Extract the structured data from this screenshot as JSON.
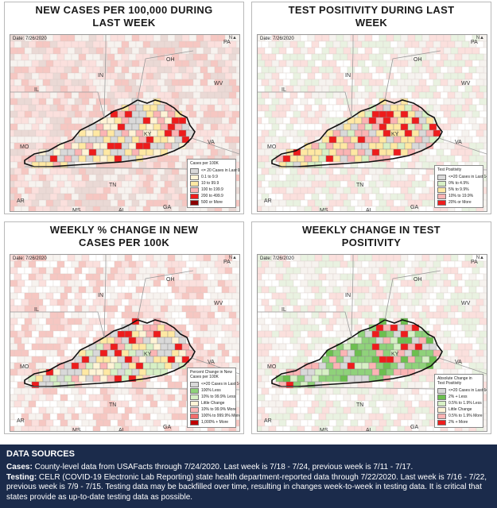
{
  "panels": [
    {
      "title_l1": "NEW CASES PER 100,000 DURING",
      "title_l2": "LAST WEEK",
      "date": "Date: 7/26/2020",
      "legend": {
        "title_l1": "Cases per 100K",
        "title_l2": "",
        "items": [
          {
            "label": "<= 20 Cases in Last 14 Days",
            "color": "#d9d9d9"
          },
          {
            "label": "0.1 to 9.9",
            "color": "#fff4d6"
          },
          {
            "label": "10 to 99.9",
            "color": "#ffe8a3"
          },
          {
            "label": "100 to 199.9",
            "color": "#fbb4b4"
          },
          {
            "label": "200 to 499.9",
            "color": "#ee1c1c"
          },
          {
            "label": "500 or More",
            "color": "#8b0000"
          }
        ]
      }
    },
    {
      "title_l1": "TEST POSITIVITY DURING LAST",
      "title_l2": "WEEK",
      "date": "Date: 7/26/2020",
      "legend": {
        "title_l1": "Test Positivity",
        "title_l2": "",
        "items": [
          {
            "label": "<=20 Cases in Last 14 Days",
            "color": "#d9d9d9"
          },
          {
            "label": "0% to 4.9%",
            "color": "#d7f0c5"
          },
          {
            "label": "5% to 9.9%",
            "color": "#ffe8a3"
          },
          {
            "label": "10% to 19.9%",
            "color": "#fbb4b4"
          },
          {
            "label": "20% or More",
            "color": "#ee1c1c"
          }
        ]
      }
    },
    {
      "title_l1": "WEEKLY % CHANGE IN NEW",
      "title_l2": "CASES PER 100K",
      "date": "Date: 7/26/2020",
      "legend": {
        "title_l1": "Percent Change in New",
        "title_l2": "Cases per 100K",
        "items": [
          {
            "label": "<=20 Cases in Last 14 Days",
            "color": "#d9d9d9"
          },
          {
            "label": "100% Less",
            "color": "#8fd27a"
          },
          {
            "label": "10% to 99.9% Less",
            "color": "#d7f0c5"
          },
          {
            "label": "Little Change",
            "color": "#fff4d6"
          },
          {
            "label": "10% to 99.9% More",
            "color": "#fbb4b4"
          },
          {
            "label": "100% to 999.9% More",
            "color": "#f26d6d"
          },
          {
            "label": "1,000% + More",
            "color": "#c00000"
          }
        ]
      }
    },
    {
      "title_l1": "WEEKLY CHANGE IN TEST",
      "title_l2": "POSITIVITY",
      "date": "Date: 7/26/2020",
      "legend": {
        "title_l1": "Absolute Change in Test",
        "title_l2": "Positivity",
        "items": [
          {
            "label": "<=20 Cases in Last 14 Days",
            "color": "#d9d9d9"
          },
          {
            "label": "2% + Less",
            "color": "#6cbf4f"
          },
          {
            "label": "0.5% to 1.9% Less",
            "color": "#d7f0c5"
          },
          {
            "label": "Little Change",
            "color": "#fff4d6"
          },
          {
            "label": "0.5% to 1.9% More",
            "color": "#fbb4b4"
          },
          {
            "label": "2% + More",
            "color": "#ee1c1c"
          }
        ]
      }
    }
  ],
  "state_labels": {
    "oh": "OH",
    "in": "IN",
    "il": "IL",
    "wv": "WV",
    "ky": "KY",
    "va": "VA",
    "mo": "MO",
    "tn": "TN",
    "ar": "AR",
    "ms": "MS",
    "al": "AL",
    "ga": "GA",
    "nc": "NC",
    "pa": "PA"
  },
  "colors": {
    "footer_bg": "#1b2b4b",
    "ky_red": "#ee1c1c",
    "ky_yellow": "#ffe8a3",
    "ky_green": "#8fd27a",
    "ky_gray": "#d9d9d9"
  },
  "footer": {
    "title": "DATA SOURCES",
    "cases_label": "Cases:",
    "cases_text": " County-level data from USAFacts through 7/24/2020. Last week is 7/18 - 7/24, previous week is 7/11 - 7/17.",
    "testing_label": "Testing:",
    "testing_text": " CELR (COVID-19 Electronic Lab Reporting) state health department-reported data through 7/22/2020. Last week is 7/16 - 7/22, previous week is 7/9 - 7/15. Testing data may be backfilled over time, resulting in changes week-to-week in testing data. It is critical that states provide as up-to-date testing data as possible."
  }
}
